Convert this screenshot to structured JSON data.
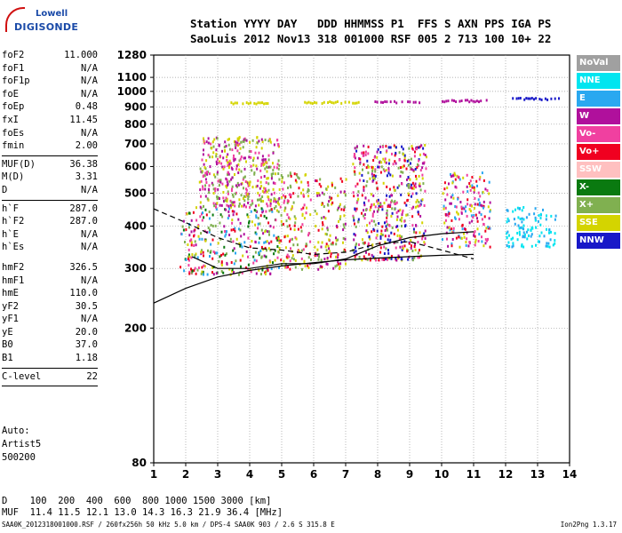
{
  "logo": {
    "line1": "Lowell",
    "line2": "DIGISONDE"
  },
  "header": {
    "line1": "Station YYYY DAY   DDD HHMMSS P1  FFS S AXN PPS IGA PS",
    "line2": "SaoLuis 2012 Nov13 318 001000 RSF 005 2 713 100 10+ 22"
  },
  "params": [
    {
      "k": "foF2",
      "v": "11.000"
    },
    {
      "k": "foF1",
      "v": "N/A"
    },
    {
      "k": "foF1p",
      "v": "N/A"
    },
    {
      "k": "foE",
      "v": "N/A"
    },
    {
      "k": "foEp",
      "v": "0.48"
    },
    {
      "k": "fxI",
      "v": "11.45"
    },
    {
      "k": "foEs",
      "v": "N/A"
    },
    {
      "k": "fmin",
      "v": "2.00"
    },
    {
      "sep": true
    },
    {
      "k": "MUF(D)",
      "v": "36.38"
    },
    {
      "k": "M(D)",
      "v": "3.31"
    },
    {
      "k": "D",
      "v": "N/A"
    },
    {
      "sep": true
    },
    {
      "k": "h`F",
      "v": "287.0"
    },
    {
      "k": "h`F2",
      "v": "287.0"
    },
    {
      "k": "h`E",
      "v": "N/A"
    },
    {
      "k": "h`Es",
      "v": "N/A"
    },
    {
      "gap": true
    },
    {
      "k": "hmF2",
      "v": "326.5"
    },
    {
      "k": "hmF1",
      "v": "N/A"
    },
    {
      "k": "hmE",
      "v": "110.0"
    },
    {
      "k": "yF2",
      "v": "30.5"
    },
    {
      "k": "yF1",
      "v": "N/A"
    },
    {
      "k": "yE",
      "v": "20.0"
    },
    {
      "k": "B0",
      "v": "37.0"
    },
    {
      "k": "B1",
      "v": "1.18"
    },
    {
      "sep": true
    },
    {
      "k": "C-level",
      "v": "22"
    },
    {
      "sep": true
    }
  ],
  "auto": {
    "line1": "Auto:",
    "line2": "Artist5",
    "line3": "500200"
  },
  "legend": [
    {
      "label": "NoVal",
      "color": "#a0a0a0"
    },
    {
      "label": "NNE",
      "color": "#00e5f0"
    },
    {
      "label": "E",
      "color": "#2aa8f0"
    },
    {
      "label": "W",
      "color": "#b0109c"
    },
    {
      "label": "Vo-",
      "color": "#f040a0"
    },
    {
      "label": "Vo+",
      "color": "#f00020"
    },
    {
      "label": "SSW",
      "color": "#ffc0c0"
    },
    {
      "label": "X-",
      "color": "#0a7a10"
    },
    {
      "label": "X+",
      "color": "#80b050"
    },
    {
      "label": "SSE",
      "color": "#d4d400"
    },
    {
      "label": "NNW",
      "color": "#1818c8"
    }
  ],
  "muf_table": {
    "d_line": "D    100  200  400  600  800 1000 1500 3000 [km]",
    "muf_line": "MUF  11.4 11.5 12.1 13.0 14.3 16.3 21.9 36.4 [MHz]"
  },
  "footer": {
    "left": "SAA0K_2012318001000.RSF / 260fx256h 50 kHz 5.0 km / DPS-4 SAA0K 903 / 2.6 S 315.8 E",
    "right": "Ion2Png 1.3.17"
  },
  "chart_data": {
    "type": "scatter",
    "xlabel": "",
    "ylabel": "",
    "xlim": [
      1,
      14
    ],
    "ylim": [
      80,
      1280
    ],
    "y_scale": "log",
    "x_ticks": [
      1,
      2,
      3,
      4,
      5,
      6,
      7,
      8,
      9,
      10,
      11,
      12,
      13,
      14
    ],
    "y_ticks": [
      80,
      200,
      300,
      400,
      500,
      600,
      700,
      800,
      900,
      1000,
      1100,
      1280
    ],
    "grid": true,
    "clusters": [
      {
        "x0": 1.8,
        "x1": 4.9,
        "y0": 290,
        "y1": 460,
        "color_mix": [
          "#f00020",
          "#f040a0",
          "#b0109c",
          "#d4d400",
          "#80b050",
          "#0a7a10",
          "#2aa8f0"
        ]
      },
      {
        "x0": 2.4,
        "x1": 4.9,
        "y0": 460,
        "y1": 740,
        "color_mix": [
          "#d4d400",
          "#f040a0",
          "#b0109c",
          "#80b050"
        ]
      },
      {
        "x0": 4.9,
        "x1": 5.9,
        "y0": 300,
        "y1": 580,
        "color_mix": [
          "#d4d400",
          "#f00020",
          "#f040a0",
          "#80b050"
        ]
      },
      {
        "x0": 6.0,
        "x1": 7.0,
        "y0": 300,
        "y1": 560,
        "color_mix": [
          "#d4d400",
          "#f00020",
          "#b0109c",
          "#80b050"
        ]
      },
      {
        "x0": 7.2,
        "x1": 9.5,
        "y0": 320,
        "y1": 700,
        "color_mix": [
          "#f00020",
          "#f040a0",
          "#b0109c",
          "#d4d400",
          "#80b050",
          "#1818c8"
        ]
      },
      {
        "x0": 10.0,
        "x1": 11.5,
        "y0": 350,
        "y1": 580,
        "color_mix": [
          "#f00020",
          "#f040a0",
          "#d4d400",
          "#b0109c",
          "#2aa8f0"
        ]
      },
      {
        "x0": 12.0,
        "x1": 13.6,
        "y0": 350,
        "y1": 460,
        "color_mix": [
          "#00e5f0",
          "#2aa8f0"
        ]
      }
    ],
    "trace_930": [
      {
        "x0": 3.4,
        "x1": 4.6,
        "y": 930,
        "color": "#d4d400"
      },
      {
        "x0": 5.7,
        "x1": 7.4,
        "y": 935,
        "color": "#d4d400"
      },
      {
        "x0": 7.9,
        "x1": 9.4,
        "y": 938,
        "color": "#b0109c"
      },
      {
        "x0": 10.0,
        "x1": 11.4,
        "y": 945,
        "color": "#b0109c"
      },
      {
        "x0": 12.2,
        "x1": 13.7,
        "y": 958,
        "color": "#1818c8"
      }
    ],
    "profile_curves": {
      "solid_lower": [
        [
          1,
          237
        ],
        [
          2,
          262
        ],
        [
          3,
          283
        ],
        [
          4,
          296
        ],
        [
          5,
          305
        ],
        [
          6,
          312
        ],
        [
          7,
          318
        ],
        [
          8,
          322
        ],
        [
          9,
          325
        ],
        [
          10,
          328
        ],
        [
          11,
          330
        ]
      ],
      "solid_upper": [
        [
          2.2,
          325
        ],
        [
          3,
          300
        ],
        [
          4,
          300
        ],
        [
          5,
          310
        ],
        [
          6,
          310
        ],
        [
          7,
          320
        ],
        [
          8,
          350
        ],
        [
          9,
          370
        ],
        [
          10,
          380
        ],
        [
          11,
          385
        ]
      ],
      "dashed": [
        [
          1,
          450
        ],
        [
          2,
          410
        ],
        [
          3,
          370
        ],
        [
          4,
          345
        ],
        [
          5,
          340
        ],
        [
          6,
          330
        ],
        [
          7,
          335
        ],
        [
          8,
          355
        ],
        [
          9,
          360
        ],
        [
          10,
          340
        ],
        [
          11,
          320
        ]
      ]
    }
  }
}
